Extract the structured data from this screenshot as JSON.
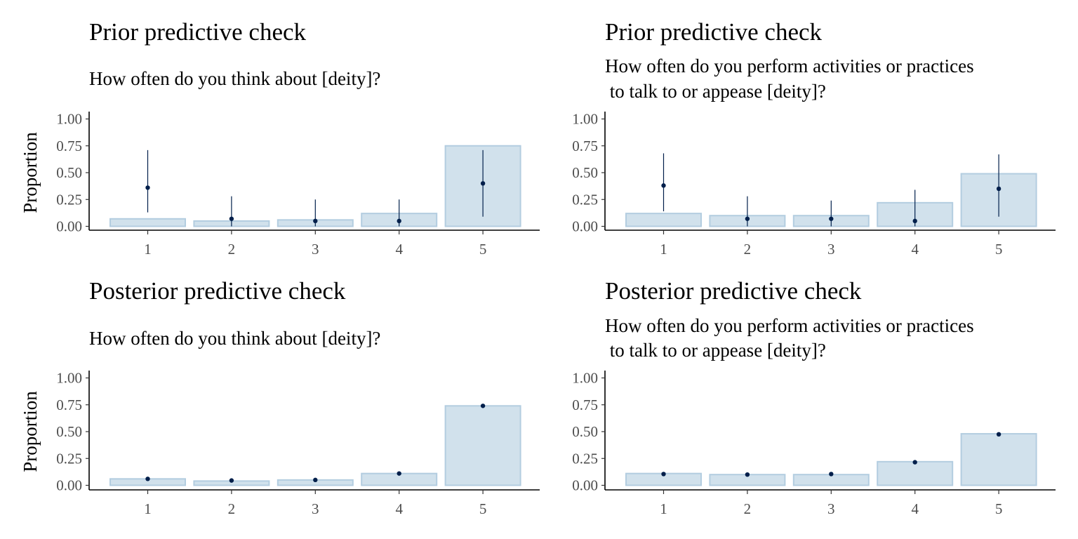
{
  "chart_data": [
    {
      "type": "bar",
      "title": "Prior predictive check",
      "subtitle": [
        "How often do you think about [deity]?"
      ],
      "ylabel": "Proportion",
      "xlabel": "",
      "categories": [
        "1",
        "2",
        "3",
        "4",
        "5"
      ],
      "ylim": [
        0,
        1.0
      ],
      "yticks": [
        "0.00",
        "0.25",
        "0.50",
        "0.75",
        "1.00"
      ],
      "observed": [
        0.07,
        0.05,
        0.06,
        0.12,
        0.75
      ],
      "predicted": [
        0.36,
        0.07,
        0.05,
        0.05,
        0.4
      ],
      "interval_low": [
        0.13,
        0.0,
        0.0,
        0.0,
        0.09
      ],
      "interval_high": [
        0.71,
        0.28,
        0.25,
        0.25,
        0.71
      ],
      "colors": {
        "bar_fill": "#d1e1ec",
        "bar_outline": "#b3cde0",
        "point": "#011f4b"
      }
    },
    {
      "type": "bar",
      "title": "Prior predictive check",
      "subtitle": [
        "How often do you perform activities or practices",
        " to talk to or appease [deity]?"
      ],
      "ylabel": "",
      "xlabel": "",
      "categories": [
        "1",
        "2",
        "3",
        "4",
        "5"
      ],
      "ylim": [
        0,
        1.0
      ],
      "yticks": [
        "0.00",
        "0.25",
        "0.50",
        "0.75",
        "1.00"
      ],
      "observed": [
        0.12,
        0.1,
        0.1,
        0.22,
        0.49
      ],
      "predicted": [
        0.38,
        0.07,
        0.07,
        0.05,
        0.35
      ],
      "interval_low": [
        0.14,
        0.0,
        0.0,
        0.0,
        0.09
      ],
      "interval_high": [
        0.68,
        0.28,
        0.24,
        0.34,
        0.67
      ],
      "colors": {
        "bar_fill": "#d1e1ec",
        "bar_outline": "#b3cde0",
        "point": "#011f4b"
      }
    },
    {
      "type": "bar",
      "title": "Posterior predictive check",
      "subtitle": [
        "How often do you think about [deity]?"
      ],
      "ylabel": "Proportion",
      "xlabel": "",
      "categories": [
        "1",
        "2",
        "3",
        "4",
        "5"
      ],
      "ylim": [
        0,
        1.0
      ],
      "yticks": [
        "0.00",
        "0.25",
        "0.50",
        "0.75",
        "1.00"
      ],
      "observed": [
        0.06,
        0.04,
        0.05,
        0.11,
        0.74
      ],
      "predicted": [
        0.06,
        0.045,
        0.05,
        0.11,
        0.74
      ],
      "interval_low": [
        0.055,
        0.04,
        0.045,
        0.105,
        0.735
      ],
      "interval_high": [
        0.065,
        0.05,
        0.055,
        0.115,
        0.745
      ],
      "colors": {
        "bar_fill": "#d1e1ec",
        "bar_outline": "#b3cde0",
        "point": "#011f4b"
      }
    },
    {
      "type": "bar",
      "title": "Posterior predictive check",
      "subtitle": [
        "How often do you perform activities or practices",
        " to talk to or appease [deity]?"
      ],
      "ylabel": "",
      "xlabel": "",
      "categories": [
        "1",
        "2",
        "3",
        "4",
        "5"
      ],
      "ylim": [
        0,
        1.0
      ],
      "yticks": [
        "0.00",
        "0.25",
        "0.50",
        "0.75",
        "1.00"
      ],
      "observed": [
        0.11,
        0.1,
        0.1,
        0.22,
        0.48
      ],
      "predicted": [
        0.105,
        0.1,
        0.105,
        0.215,
        0.475
      ],
      "interval_low": [
        0.1,
        0.095,
        0.1,
        0.21,
        0.47
      ],
      "interval_high": [
        0.11,
        0.105,
        0.11,
        0.22,
        0.48
      ],
      "colors": {
        "bar_fill": "#d1e1ec",
        "bar_outline": "#b3cde0",
        "point": "#011f4b"
      }
    }
  ]
}
